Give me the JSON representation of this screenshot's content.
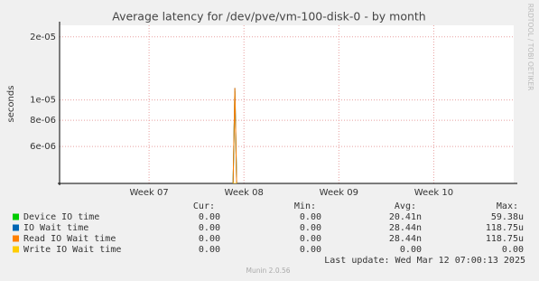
{
  "chart_data": {
    "type": "line",
    "title": "Average latency for /dev/pve/vm-100-disk-0 - by month",
    "y_label": "seconds",
    "side_label": "RRDTOOL / TOBI OETIKER",
    "log_y": true,
    "grid": true,
    "xlim": [
      0,
      33.5
    ],
    "xticks": [
      {
        "value": 6.6,
        "label": "Week 07"
      },
      {
        "value": 13.6,
        "label": "Week 08"
      },
      {
        "value": 20.6,
        "label": "Week 09"
      },
      {
        "value": 27.6,
        "label": "Week 10"
      }
    ],
    "ylim": [
      4e-06,
      2.27e-05
    ],
    "yticks": [
      {
        "value": 2e-05,
        "label": "2e-05"
      },
      {
        "value": 1e-05,
        "label": "1e-05"
      },
      {
        "value": 8e-06,
        "label": "8e-06"
      },
      {
        "value": 6e-06,
        "label": "6e-06"
      }
    ],
    "stats_headers": [
      "Cur:",
      "Min:",
      "Avg:",
      "Max:"
    ],
    "series": [
      {
        "name": "Device IO time",
        "color": "#00cc00",
        "x": [
          12.8,
          12.93,
          13.06
        ],
        "values": [
          4e-06,
          1.1e-05,
          4e-06
        ],
        "stats": [
          "0.00",
          "0.00",
          "20.41n",
          "59.38u"
        ]
      },
      {
        "name": "IO Wait time",
        "color": "#0066b3",
        "x": [
          12.8,
          12.93,
          13.06
        ],
        "values": [
          4e-06,
          1.14e-05,
          4e-06
        ],
        "stats": [
          "0.00",
          "0.00",
          "28.44n",
          "118.75u"
        ]
      },
      {
        "name": "Read IO Wait time",
        "color": "#ff8000",
        "x": [
          12.8,
          12.93,
          13.06
        ],
        "values": [
          4e-06,
          1.14e-05,
          4e-06
        ],
        "stats": [
          "0.00",
          "0.00",
          "28.44n",
          "118.75u"
        ]
      },
      {
        "name": "Write IO Wait time",
        "color": "#ffcc00",
        "x": [
          12.8,
          12.93,
          13.06
        ],
        "values": [
          4e-06,
          4e-06,
          4e-06
        ],
        "stats": [
          "0.00",
          "0.00",
          "0.00",
          "0.00"
        ]
      }
    ],
    "last_update": "Last update: Wed Mar 12 07:00:13 2025",
    "footer": "Munin 2.0.56"
  }
}
